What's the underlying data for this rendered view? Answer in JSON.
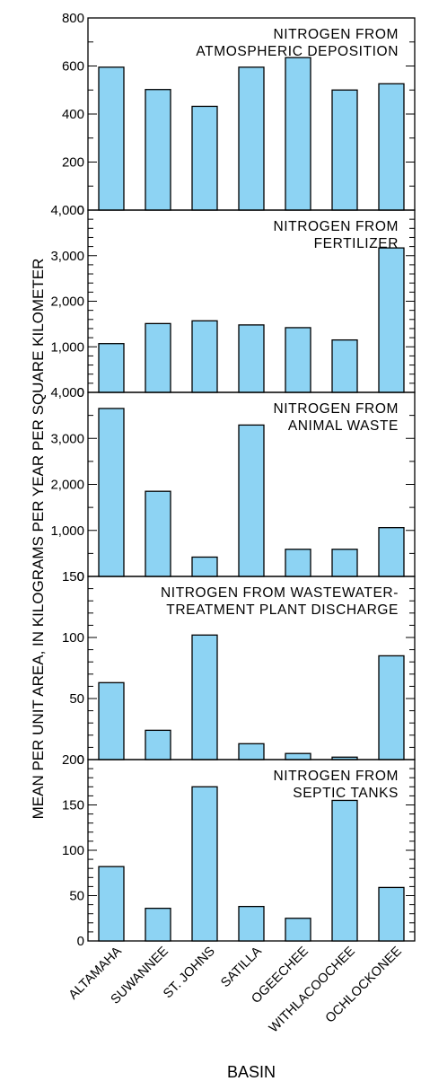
{
  "figure": {
    "ylabel": "MEAN PER UNIT AREA, IN KILOGRAMS PER YEAR PER SQUARE KILOMETER",
    "xlabel": "BASIN",
    "bar_color": "#8dd3f3",
    "bar_stroke": "#000000"
  },
  "chart_data": [
    {
      "type": "bar",
      "title_lines": [
        "NITROGEN FROM",
        "ATMOSPHERIC DEPOSITION"
      ],
      "categories": [
        "ALTAMAHA",
        "SUWANNEE",
        "ST. JOHNS",
        "SATILLA",
        "OGEECHEE",
        "WITHLACOOCHEE",
        "OCHLOCKONEE"
      ],
      "values": [
        595,
        502,
        432,
        595,
        635,
        500,
        526
      ],
      "ylim": [
        0,
        800
      ],
      "ticks": [
        0,
        200,
        400,
        600,
        800
      ],
      "tick_labels": [
        "0",
        "200",
        "400",
        "600",
        "800"
      ],
      "minor_step": 100
    },
    {
      "type": "bar",
      "title_lines": [
        "NITROGEN FROM",
        "FERTILIZER"
      ],
      "categories": [
        "ALTAMAHA",
        "SUWANNEE",
        "ST. JOHNS",
        "SATILLA",
        "OGEECHEE",
        "WITHLACOOCHEE",
        "OCHLOCKONEE"
      ],
      "values": [
        1070,
        1510,
        1570,
        1480,
        1420,
        1150,
        3170
      ],
      "ylim": [
        0,
        4000
      ],
      "ticks": [
        0,
        1000,
        2000,
        3000,
        4000
      ],
      "tick_labels": [
        "0",
        "1,000",
        "2,000",
        "3,000",
        "4,000"
      ],
      "minor_step": 200
    },
    {
      "type": "bar",
      "title_lines": [
        "NITROGEN FROM",
        "ANIMAL WASTE"
      ],
      "categories": [
        "ALTAMAHA",
        "SUWANNEE",
        "ST. JOHNS",
        "SATILLA",
        "OGEECHEE",
        "WITHLACOOCHEE",
        "OCHLOCKONEE"
      ],
      "values": [
        3650,
        1850,
        420,
        3290,
        590,
        590,
        1060
      ],
      "ylim": [
        0,
        4000
      ],
      "ticks": [
        0,
        1000,
        2000,
        3000,
        4000
      ],
      "tick_labels": [
        "0",
        "1,000",
        "2,000",
        "3,000",
        "4,000"
      ],
      "minor_step": 500
    },
    {
      "type": "bar",
      "title_lines": [
        "NITROGEN FROM WASTEWATER-",
        "TREATMENT PLANT DISCHARGE"
      ],
      "categories": [
        "ALTAMAHA",
        "SUWANNEE",
        "ST. JOHNS",
        "SATILLA",
        "OGEECHEE",
        "WITHLACOOCHEE",
        "OCHLOCKONEE"
      ],
      "values": [
        63,
        24,
        102,
        13,
        5,
        2,
        85
      ],
      "ylim": [
        0,
        150
      ],
      "ticks": [
        0,
        50,
        100,
        150
      ],
      "tick_labels": [
        "0",
        "50",
        "100",
        "150"
      ],
      "minor_step": 10
    },
    {
      "type": "bar",
      "title_lines": [
        "NITROGEN FROM",
        "SEPTIC TANKS"
      ],
      "categories": [
        "ALTAMAHA",
        "SUWANNEE",
        "ST. JOHNS",
        "SATILLA",
        "OGEECHEE",
        "WITHLACOOCHEE",
        "OCHLOCKONEE"
      ],
      "values": [
        82,
        36,
        170,
        38,
        25,
        155,
        59
      ],
      "ylim": [
        0,
        200
      ],
      "ticks": [
        0,
        50,
        100,
        150,
        200
      ],
      "tick_labels": [
        "0",
        "50",
        "100",
        "150",
        "200"
      ],
      "minor_step": 10
    }
  ]
}
